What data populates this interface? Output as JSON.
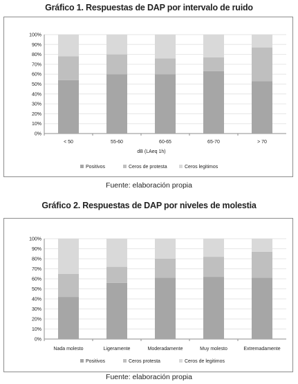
{
  "charts": [
    {
      "heading": "Gráfico 1. Respuestas de DAP por intervalo de ruido",
      "source": "Fuente: elaboración propia"
    },
    {
      "heading": "Gráfico 2. Respuestas de DAP por niveles de molestia",
      "source": "Fuente: elaboración propia"
    }
  ],
  "colors": {
    "Positivos": "#a6a6a6",
    "Ceros de protesta": "#bfbfbf",
    "Ceros legitimos": "#d9d9d9",
    "grid": "#e6e6e6",
    "axis": "#8c8c8c"
  },
  "chart_data": [
    {
      "type": "bar",
      "stacked": true,
      "title": "Gráfico 1. Respuestas de DAP por intervalo de ruido",
      "xlabel": "dB (LAeq 1h)",
      "ylabel": "",
      "ylim": [
        0,
        100
      ],
      "yticks": [
        "0%",
        "10%",
        "20%",
        "30%",
        "40%",
        "50%",
        "60%",
        "70%",
        "80%",
        "90%",
        "100%"
      ],
      "categories": [
        "< 50",
        "55-60",
        "60-65",
        "65-70",
        "> 70"
      ],
      "series": [
        {
          "name": "Positivos",
          "values": [
            54,
            60,
            60,
            63,
            53
          ]
        },
        {
          "name": "Ceros de protesta",
          "values": [
            24,
            20,
            16,
            14,
            34
          ]
        },
        {
          "name": "Ceros legitimos",
          "values": [
            22,
            20,
            24,
            23,
            13
          ]
        }
      ],
      "legend": "bottom",
      "grid": true
    },
    {
      "type": "bar",
      "stacked": true,
      "title": "Gráfico 2. Respuestas de DAP por niveles de molestia",
      "xlabel": "",
      "ylabel": "",
      "ylim": [
        0,
        100
      ],
      "yticks": [
        "0%",
        "10%",
        "20%",
        "30%",
        "40%",
        "50%",
        "60%",
        "70%",
        "80%",
        "90%",
        "100%"
      ],
      "categories": [
        "Nada molesto",
        "Ligeramente",
        "Moderadamente",
        "Muy molesto",
        "Extremadamente"
      ],
      "series": [
        {
          "name": "Positivos",
          "values": [
            42,
            56,
            61,
            62,
            61
          ]
        },
        {
          "name": "Ceros protesta",
          "values": [
            23,
            16,
            19,
            20,
            26
          ]
        },
        {
          "name": "Ceros de legitimos",
          "values": [
            35,
            28,
            20,
            18,
            13
          ]
        }
      ],
      "legend": "bottom",
      "grid": true
    }
  ]
}
